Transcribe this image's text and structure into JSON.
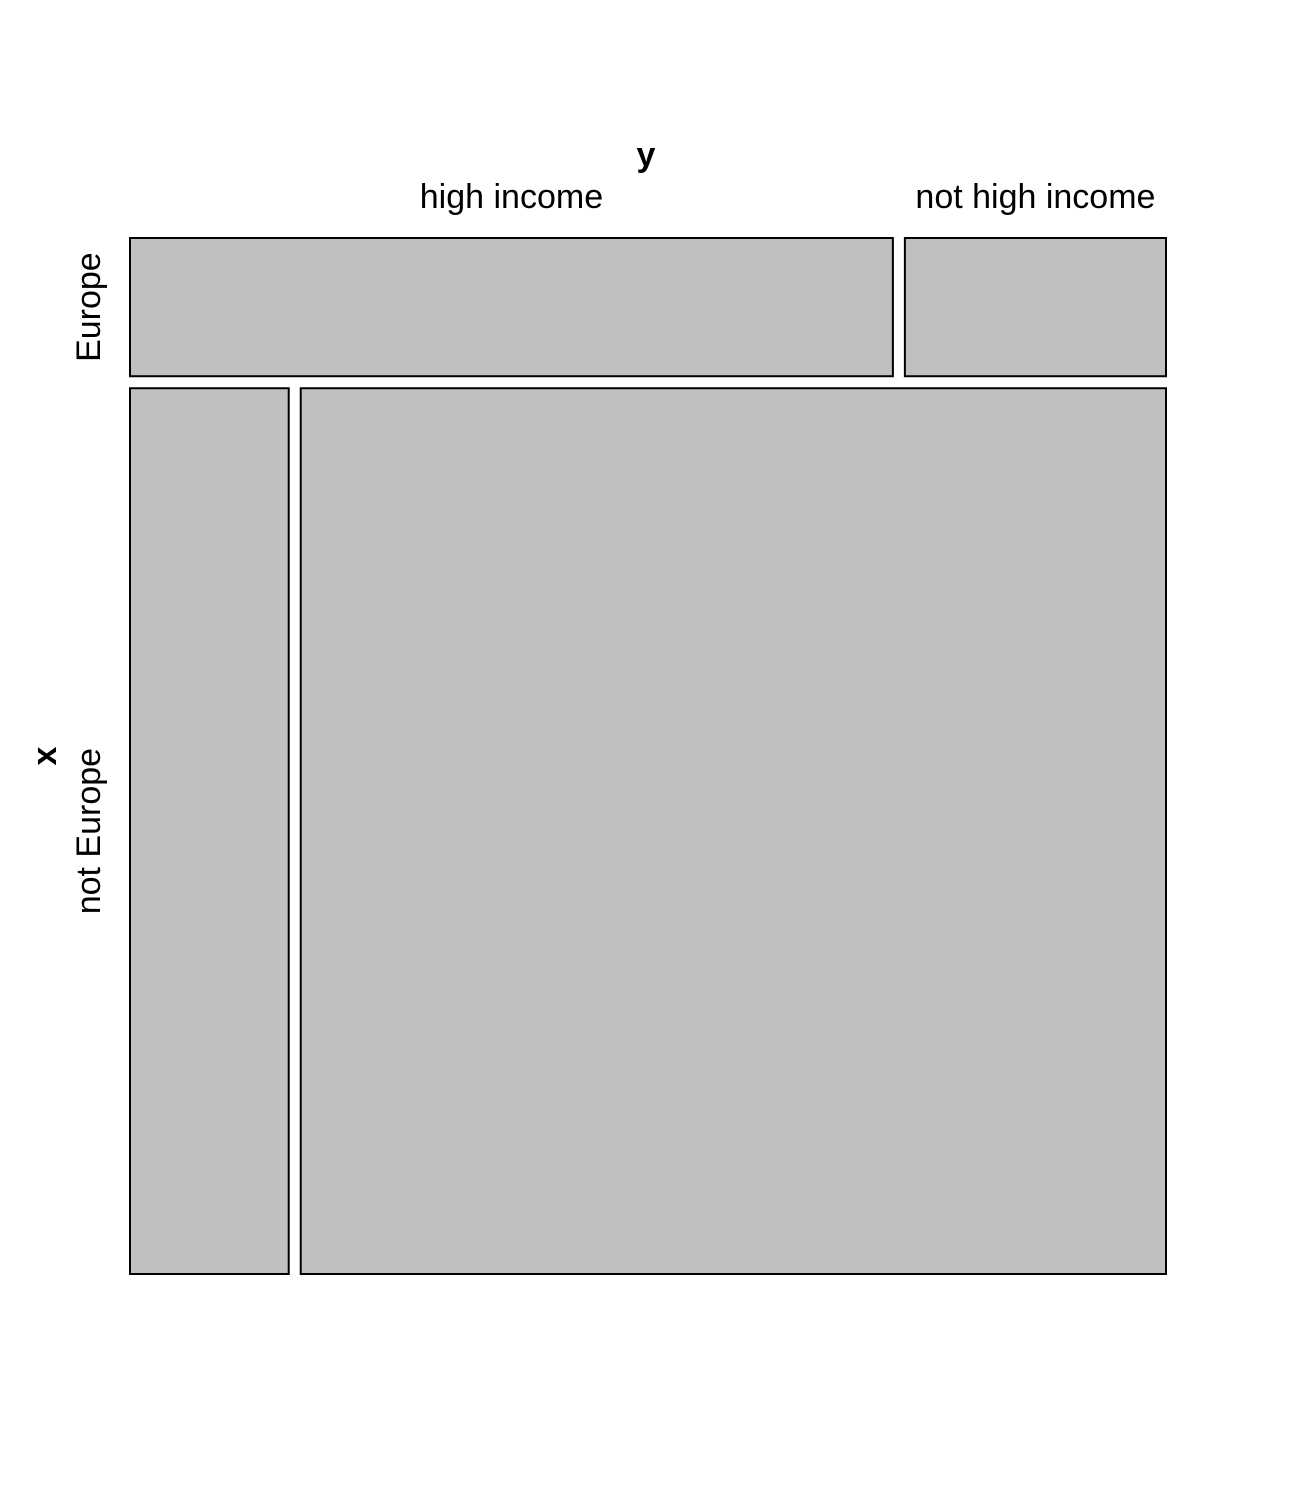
{
  "chart_data": {
    "type": "mosaic",
    "title": "",
    "xlabel": "y",
    "ylabel": "x",
    "column_categories": [
      "high income",
      "not high income"
    ],
    "row_categories": [
      "Europe",
      "not Europe"
    ],
    "row_proportions": [
      0.135,
      0.865
    ],
    "cells": [
      {
        "row": "Europe",
        "column": "high income",
        "proportion": 0.745
      },
      {
        "row": "Europe",
        "column": "not high income",
        "proportion": 0.255
      },
      {
        "row": "not Europe",
        "column": "high income",
        "proportion": 0.155
      },
      {
        "row": "not Europe",
        "column": "not high income",
        "proportion": 0.845
      }
    ],
    "fill_color": "#c0c0c0",
    "border_color": "#000000",
    "legend": "none",
    "grid": false
  }
}
